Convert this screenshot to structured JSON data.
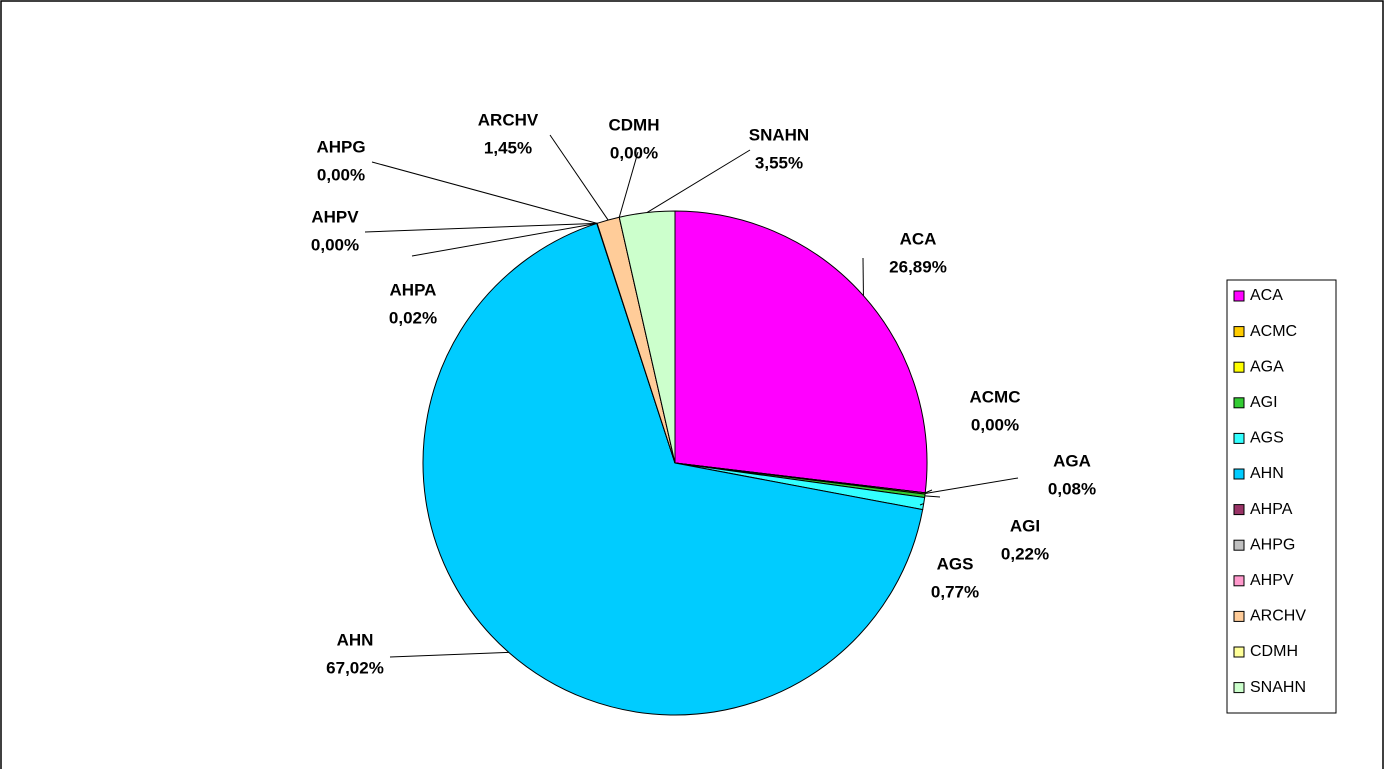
{
  "chart_data": {
    "type": "pie",
    "categories": [
      "ACA",
      "ACMC",
      "AGA",
      "AGI",
      "AGS",
      "AHN",
      "AHPA",
      "AHPG",
      "AHPV",
      "ARCHV",
      "CDMH",
      "SNAHN"
    ],
    "values": [
      26.89,
      0.0,
      0.08,
      0.22,
      0.77,
      67.02,
      0.02,
      0.0,
      0.0,
      1.45,
      0.0,
      3.55
    ],
    "value_labels": [
      "26,89%",
      "0,00%",
      "0,08%",
      "0,22%",
      "0,77%",
      "67,02%",
      "0,02%",
      "0,00%",
      "0,00%",
      "1,45%",
      "0,00%",
      "3,55%"
    ],
    "colors": [
      "#ff00ff",
      "#ffcc00",
      "#ffff00",
      "#33cc33",
      "#33ffff",
      "#00ccff",
      "#993366",
      "#c0c0c0",
      "#ff99cc",
      "#ffcc99",
      "#ffff99",
      "#ccffcc"
    ],
    "legend": "right"
  }
}
